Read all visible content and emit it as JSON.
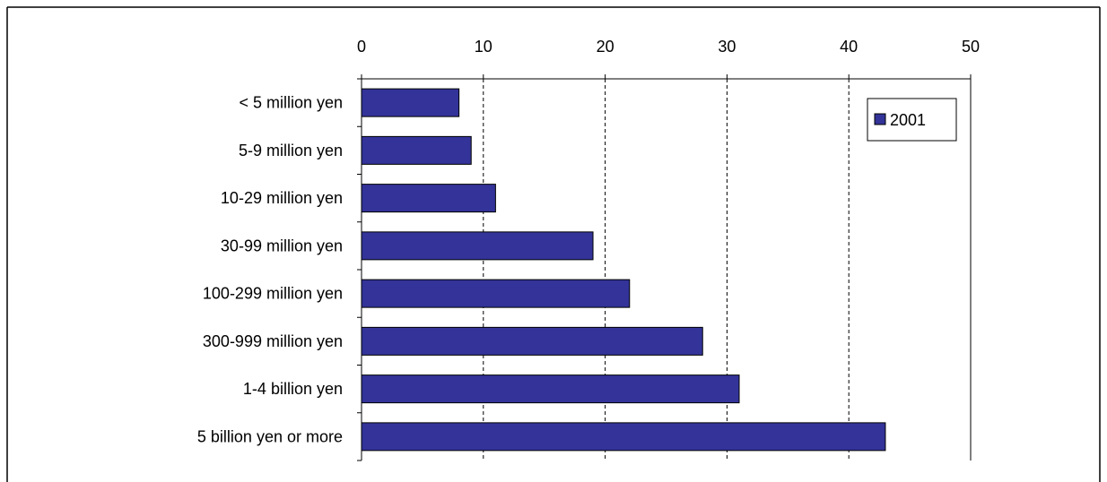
{
  "chart_data": {
    "type": "bar",
    "orientation": "horizontal",
    "categories": [
      "< 5 million yen",
      "5-9 million yen",
      "10-29 million yen",
      "30-99 million yen",
      "100-299 million yen",
      "300-999 million yen",
      "1-4 billion yen",
      "5 billion yen or more"
    ],
    "series": [
      {
        "name": "2001",
        "values": [
          8,
          9,
          11,
          19,
          22,
          28,
          31,
          43
        ]
      }
    ],
    "title": "",
    "xlabel": "",
    "ylabel": "",
    "xlim": [
      0,
      50
    ],
    "ticks": [
      "0",
      "10",
      "20",
      "30",
      "40",
      "50"
    ],
    "grid": "vertical dashed",
    "legend": "top-right",
    "colors": {
      "bar_fill": "#333399",
      "bar_stroke": "#000000"
    }
  }
}
